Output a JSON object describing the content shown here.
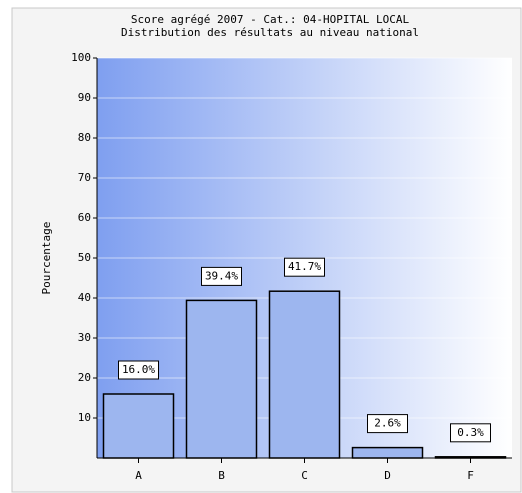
{
  "chart_data": {
    "type": "bar",
    "title": "Score agrégé 2007 - Cat.: 04-HOPITAL LOCAL",
    "subtitle": "Distribution des résultats au niveau national",
    "y_label": "Pourcentage",
    "categories": [
      "A",
      "B",
      "C",
      "D",
      "F"
    ],
    "values": [
      16.0,
      39.4,
      41.7,
      2.6,
      0.3
    ],
    "value_labels": [
      "16.0%",
      "39.4%",
      "41.7%",
      "2.6%",
      "0.3%"
    ],
    "color": "#9db6ef",
    "ylim": [
      0,
      100
    ],
    "yticks": [
      10,
      20,
      30,
      40,
      50,
      60,
      70,
      80,
      90,
      100
    ],
    "grid": true
  }
}
